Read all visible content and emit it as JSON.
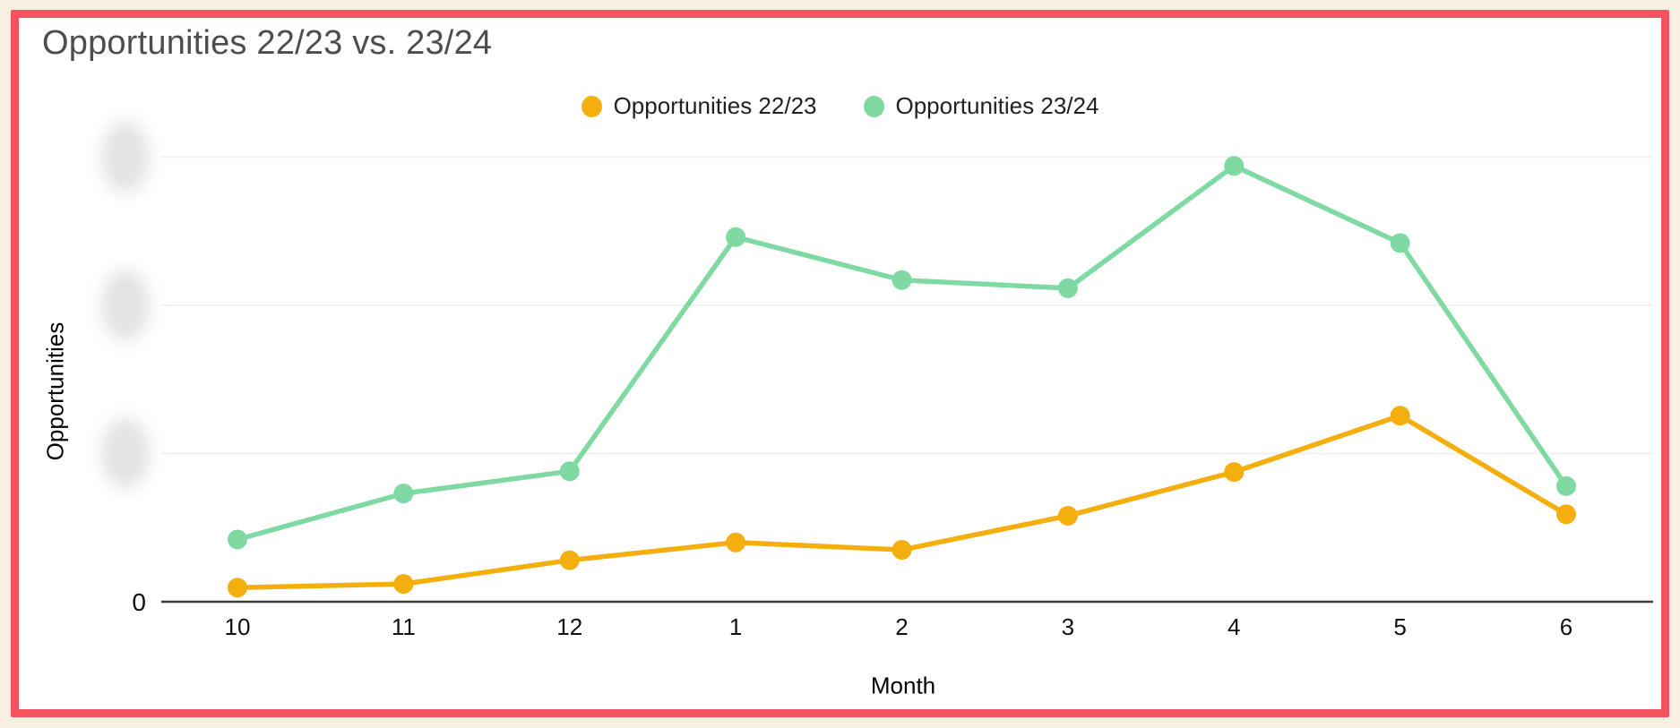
{
  "page_frame": {
    "background_color": "#f8efe3",
    "border_color": "#f2535e",
    "card_color": "#ffffff"
  },
  "title": "Opportunities 22/23 vs. 23/24",
  "chart_data": {
    "type": "line",
    "title": "Opportunities 22/23 vs. 23/24",
    "xlabel": "Month",
    "ylabel": "Opportunities",
    "categories": [
      "10",
      "11",
      "12",
      "1",
      "2",
      "3",
      "4",
      "5",
      "6"
    ],
    "y_ticks": [
      {
        "value": 0,
        "label": "0",
        "redacted": false
      },
      {
        "value": 20,
        "label": "",
        "redacted": true
      },
      {
        "value": 40,
        "label": "",
        "redacted": true
      },
      {
        "value": 60,
        "label": "",
        "redacted": true
      }
    ],
    "ylim": [
      0,
      66
    ],
    "grid": "horizontal-only",
    "legend_position": "top-center",
    "note": "Y-axis tick labels above 0 are blurred out in the source screenshot; series values are pixel-estimated assuming one gridline interval = 20 units",
    "series": [
      {
        "name": "Opportunities 22/23",
        "color": "#F4AF0E",
        "values": [
          1.9,
          2.4,
          5.6,
          8.0,
          7.0,
          11.6,
          17.5,
          25.1,
          11.8
        ]
      },
      {
        "name": "Opportunities 23/24",
        "color": "#7ED9A2",
        "values": [
          8.4,
          14.6,
          17.6,
          49.2,
          43.4,
          42.3,
          58.8,
          48.4,
          15.6
        ]
      }
    ]
  }
}
